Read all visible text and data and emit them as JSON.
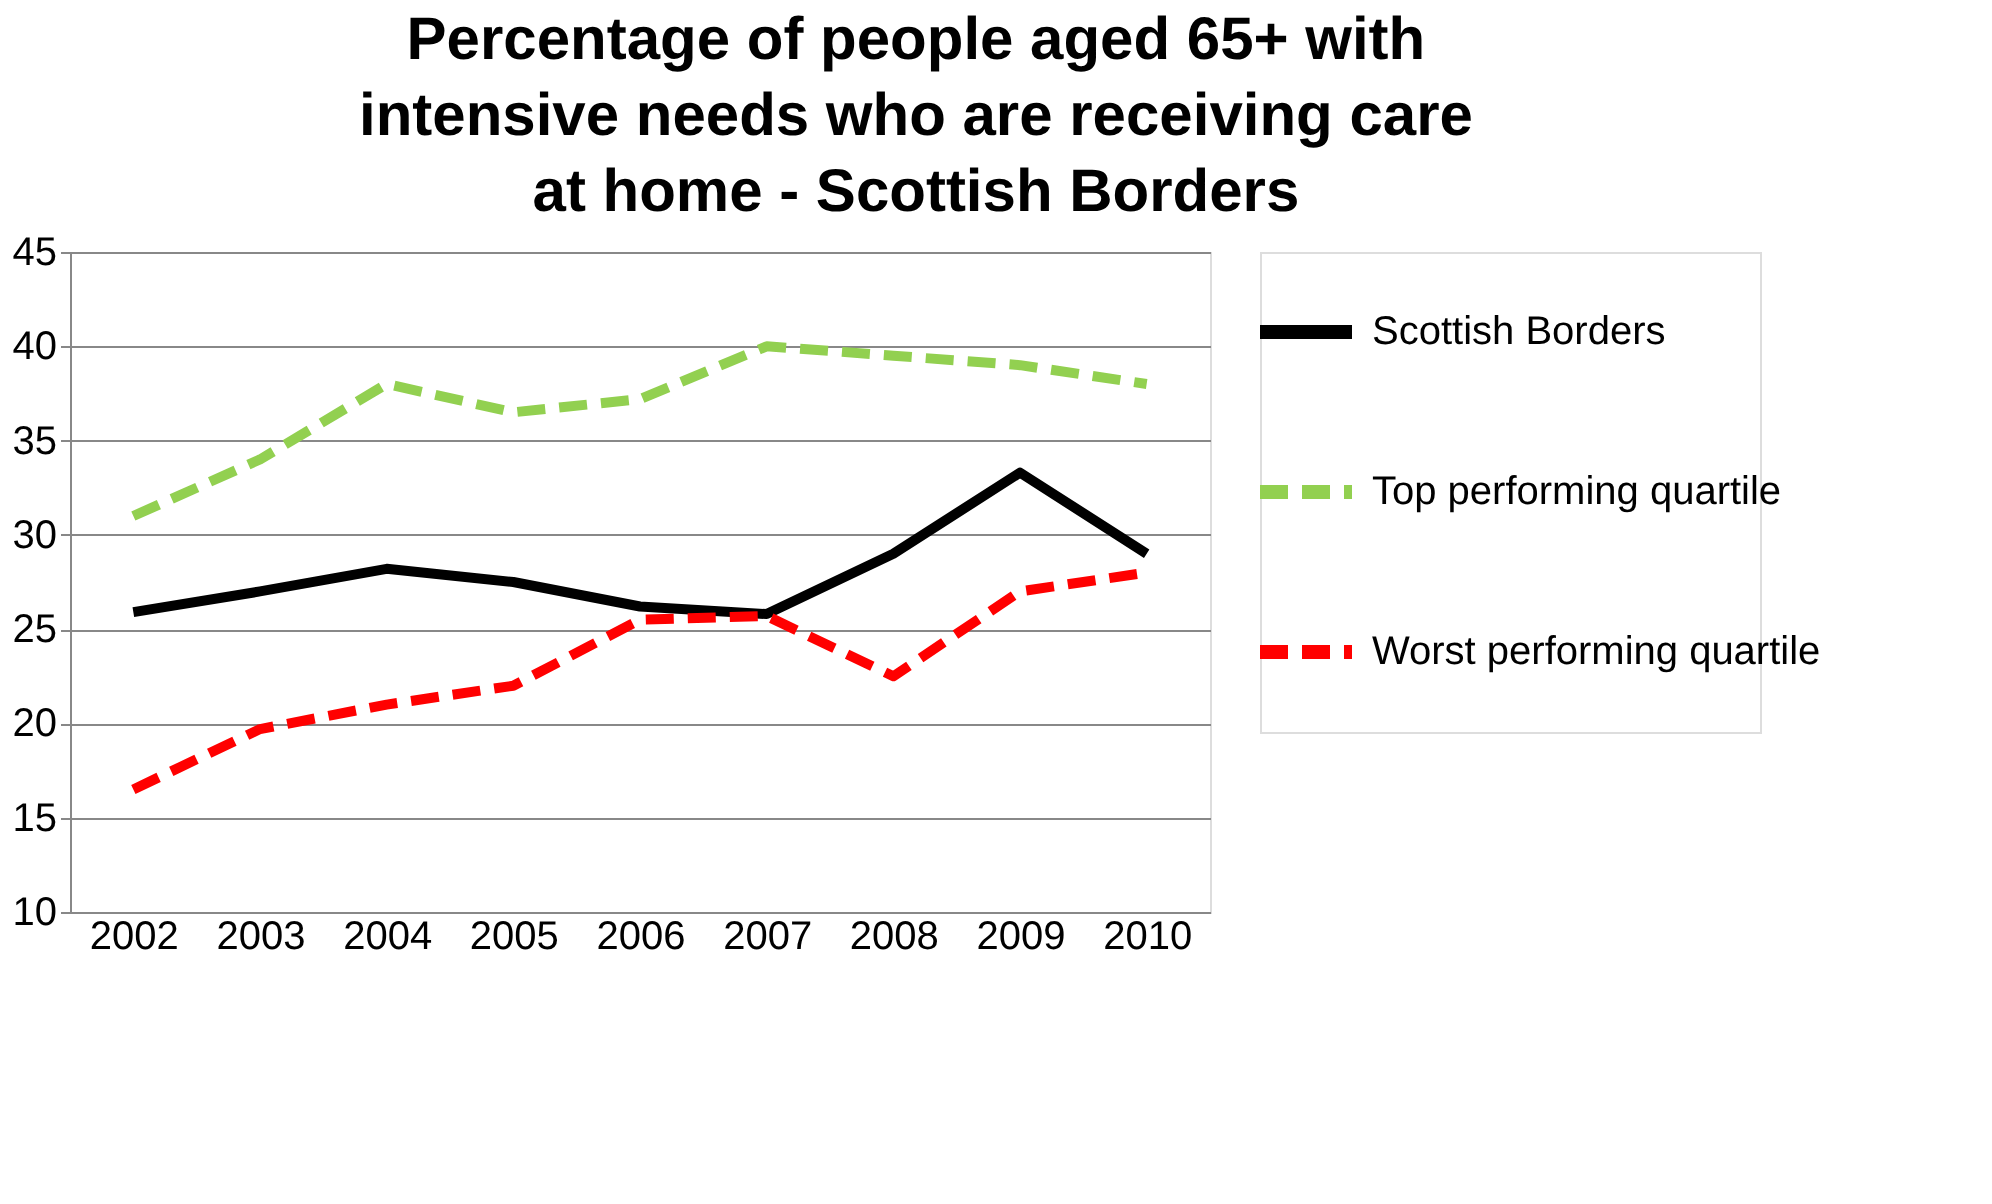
{
  "chart_data": {
    "type": "line",
    "title": "Percentage of people aged 65+ with intensive needs who are receiving care at home - Scottish Borders",
    "categories": [
      "2002",
      "2003",
      "2004",
      "2005",
      "2006",
      "2007",
      "2008",
      "2009",
      "2010"
    ],
    "series": [
      {
        "name": "Scottish Borders",
        "color": "#000000",
        "line_style": "solid",
        "values": [
          25.9,
          27.0,
          28.2,
          27.5,
          26.2,
          25.8,
          29.0,
          33.3,
          29.0
        ]
      },
      {
        "name": "Top performing quartile",
        "color": "#92d050",
        "line_style": "dashed",
        "values": [
          31.0,
          34.0,
          38.0,
          36.5,
          37.2,
          40.0,
          39.5,
          39.0,
          38.0
        ]
      },
      {
        "name": "Worst performing quartile",
        "color": "#ff0000",
        "line_style": "dashed",
        "values": [
          16.5,
          19.7,
          21.0,
          22.0,
          25.5,
          25.7,
          22.5,
          27.0,
          28.0
        ]
      }
    ],
    "ylim": [
      10,
      45
    ],
    "yticks": [
      10,
      15,
      20,
      25,
      30,
      35,
      40,
      45
    ],
    "grid": "y",
    "legend": "right",
    "marker": "none"
  }
}
